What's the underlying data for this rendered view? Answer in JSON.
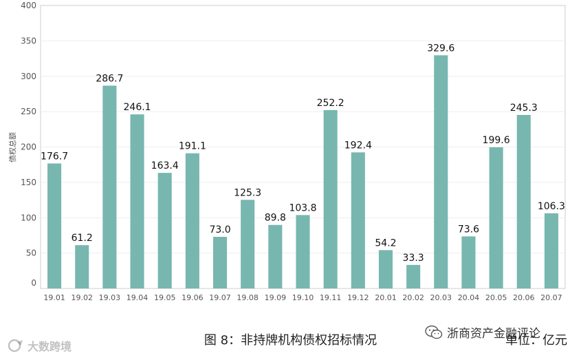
{
  "chart_data": {
    "type": "bar",
    "ylabel": "债权总额",
    "ylim": [
      0,
      400
    ],
    "yticks": [
      0,
      50,
      100,
      150,
      200,
      250,
      300,
      350,
      400
    ],
    "grid": true,
    "bar_color": "#77b7b0",
    "categories": [
      "19.01",
      "19.02",
      "19.03",
      "19.04",
      "19.05",
      "19.06",
      "19.07",
      "19.08",
      "19.09",
      "19.10",
      "19.11",
      "19.12",
      "20.01",
      "20.02",
      "20.03",
      "20.04",
      "20.05",
      "20.06",
      "20.07"
    ],
    "values": [
      176.7,
      61.2,
      286.7,
      246.1,
      163.4,
      191.1,
      73.0,
      125.3,
      89.8,
      103.8,
      252.2,
      192.4,
      54.2,
      33.3,
      329.6,
      73.6,
      199.6,
      245.3,
      106.3
    ],
    "value_labels": [
      "176.7",
      "61.2",
      "286.7",
      "246.1",
      "163.4",
      "191.1",
      "73.0",
      "125.3",
      "89.8",
      "103.8",
      "252.2",
      "192.4",
      "54.2",
      "33.3",
      "329.6",
      "73.6",
      "199.6",
      "245.3",
      "106.3"
    ]
  },
  "caption": "图 8：非持牌机构债权招标情况",
  "unit_label": "单位：亿元",
  "wechat": {
    "icon": "wechat-icon",
    "name": "浙商资产金融评论"
  },
  "watermark": {
    "icon": "logo-icon",
    "text": "大数跨境"
  }
}
